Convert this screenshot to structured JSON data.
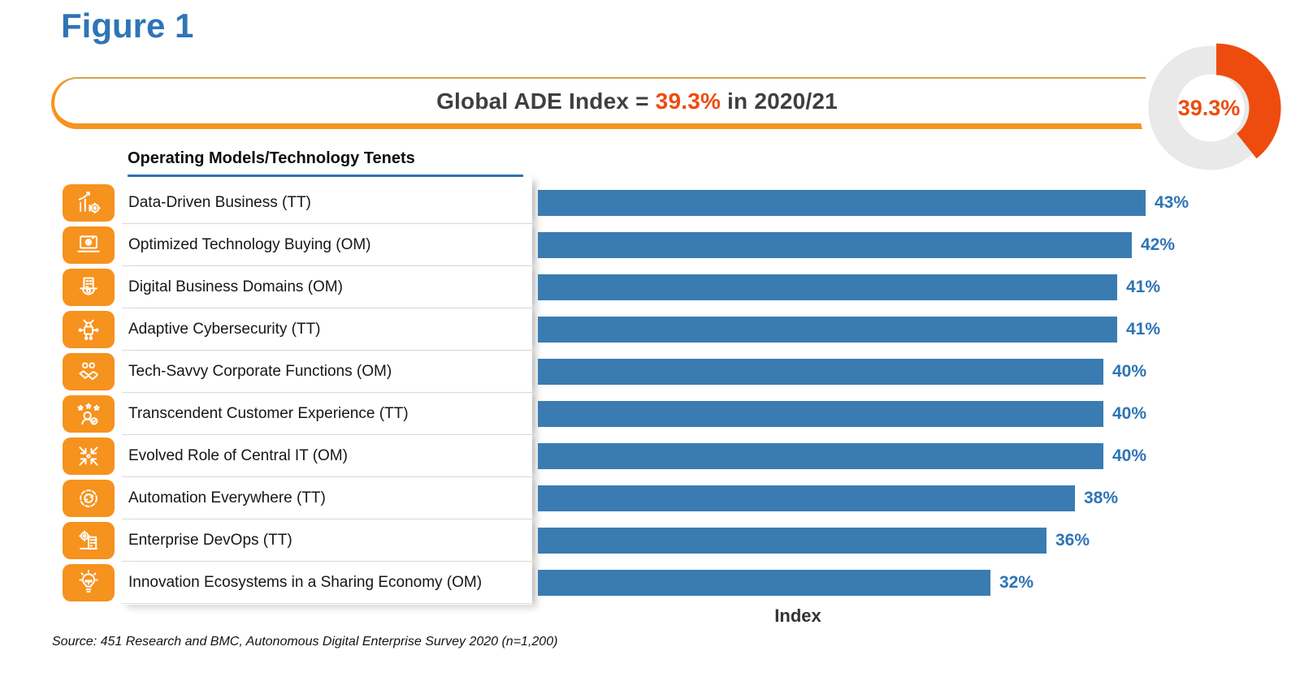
{
  "figure_label": "Figure 1",
  "banner": {
    "prefix": "Global ADE Index = ",
    "highlight": "39.3%",
    "suffix": " in 2020/21"
  },
  "donut": {
    "percent": 39.3,
    "value_label": "39.3%",
    "fill_color": "#EE4C0F",
    "track_color": "#E9E9E9"
  },
  "chart_data": {
    "type": "bar",
    "orientation": "horizontal",
    "title": "Global ADE Index = 39.3% in 2020/21",
    "column_header": "Operating Models/Technology Tenets",
    "xlabel": "Index",
    "xlim": [
      0,
      45
    ],
    "grid": false,
    "bar_color": "#3A7CB1",
    "value_label_color": "#2E74B5",
    "categories": [
      "Data-Driven Business (TT)",
      "Optimized Technology Buying (OM)",
      "Digital Business Domains (OM)",
      "Adaptive Cybersecurity (TT)",
      "Tech-Savvy Corporate Functions (OM)",
      "Transcendent Customer Experience (TT)",
      "Evolved Role of Central IT (OM)",
      "Automation Everywhere (TT)",
      "Enterprise DevOps (TT)",
      "Innovation Ecosystems in a Sharing Economy (OM)"
    ],
    "icons": [
      "growth-chart-gear-icon",
      "laptop-gear-icon",
      "building-on-gear-icon",
      "lock-circuit-icon",
      "handshake-team-icon",
      "customer-stars-icon",
      "converging-arrows-icon",
      "gear-cycle-icon",
      "gear-factory-icon",
      "lightbulb-circuit-icon"
    ],
    "values": [
      43,
      42,
      41,
      41,
      40,
      40,
      40,
      38,
      36,
      32
    ],
    "value_labels": [
      "43%",
      "42%",
      "41%",
      "41%",
      "40%",
      "40%",
      "40%",
      "38%",
      "36%",
      "32%"
    ]
  },
  "source_note": "Source: 451 Research and BMC, Autonomous Digital Enterprise Survey 2020 (n=1,200)",
  "colors": {
    "title_blue": "#2E75B6",
    "bar_blue": "#3A7CB1",
    "accent_orange_red": "#EE4C0F",
    "banner_border_orange": "#F7941E",
    "banner_border_gold": "#D5A545",
    "icon_orange": "#F6921E",
    "separator_gray": "#DBDBDB",
    "donut_track_gray": "#E9E9E9"
  }
}
